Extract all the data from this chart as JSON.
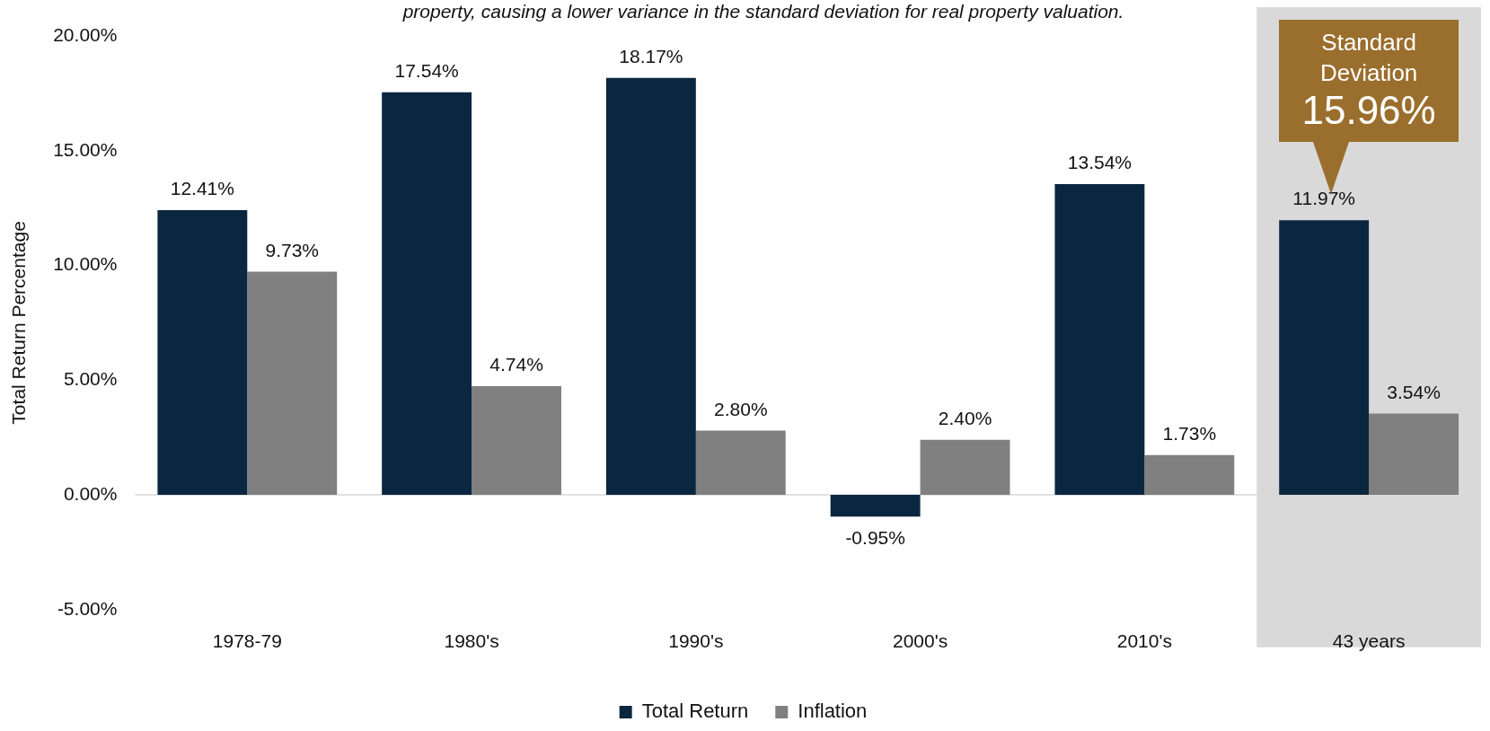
{
  "chart_data": {
    "type": "bar",
    "subtitle": "property, causing a lower variance in the standard deviation for real property valuation.",
    "ylabel": "Total Return Percentage",
    "categories": [
      "1978-79",
      "1980's",
      "1990's",
      "2000's",
      "2010's",
      "43 years"
    ],
    "series": [
      {
        "name": "Total Return",
        "color": "#0b2740",
        "values": [
          12.41,
          17.54,
          18.17,
          -0.95,
          13.54,
          11.97
        ],
        "value_labels": [
          "12.41%",
          "17.54%",
          "18.17%",
          "-0.95%",
          "13.54%",
          "11.97%"
        ]
      },
      {
        "name": "Inflation",
        "color": "#808080",
        "values": [
          9.73,
          4.74,
          2.8,
          2.4,
          1.73,
          3.54
        ],
        "value_labels": [
          "9.73%",
          "4.74%",
          "2.80%",
          "2.40%",
          "1.73%",
          "3.54%"
        ]
      }
    ],
    "ylim": [
      -5,
      20
    ],
    "yticks": [
      {
        "value": -5,
        "label": "-5.00%"
      },
      {
        "value": 0,
        "label": "0.00%"
      },
      {
        "value": 5,
        "label": "5.00%"
      },
      {
        "value": 10,
        "label": "10.00%"
      },
      {
        "value": 15,
        "label": "15.00%"
      },
      {
        "value": 20,
        "label": "20.00%"
      }
    ],
    "grid": false,
    "legend": "bottom",
    "ref_lines": [
      {
        "axis": "y",
        "value": 0,
        "color": "#d9d9d9"
      }
    ],
    "bands": [
      {
        "axis": "x",
        "from": "43 years",
        "to": "43 years",
        "color": "#d9d9d9"
      }
    ],
    "annotations": [
      "Standard Deviation 15.96%"
    ]
  }
}
